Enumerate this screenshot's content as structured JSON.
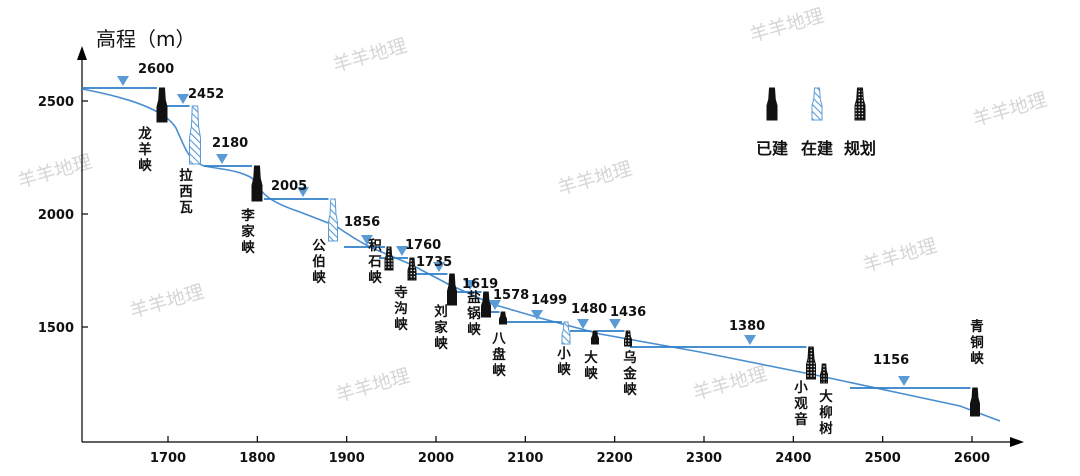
{
  "chart_data": {
    "type": "diagram",
    "y_axis_title": "高程（m）",
    "x_ticks": [
      1700,
      1800,
      1900,
      2000,
      2100,
      2200,
      2300,
      2400,
      2500,
      2600
    ],
    "y_ticks": [
      1500,
      2000,
      2500
    ],
    "legend": [
      {
        "key": "built",
        "label": "已建"
      },
      {
        "key": "building",
        "label": "在建"
      },
      {
        "key": "planned",
        "label": "规划"
      }
    ],
    "watermark": "羊羊地理",
    "stations": [
      {
        "name": "龙羊峡",
        "elevation": "2600",
        "status": "built"
      },
      {
        "name": "拉西瓦",
        "elevation": "2452",
        "status": "building"
      },
      {
        "name": "李家峡",
        "elevation": "2180",
        "status": "built"
      },
      {
        "name": "公伯峡",
        "elevation": "2005",
        "status": "building"
      },
      {
        "name": "积石峡",
        "elevation": "1856",
        "status": "planned"
      },
      {
        "name": "寺沟峡",
        "elevation": "1760",
        "status": "planned"
      },
      {
        "name": "刘家峡",
        "elevation": "1735",
        "status": "built"
      },
      {
        "name": "盐锅峡",
        "elevation": "1619",
        "status": "built"
      },
      {
        "name": "八盘峡",
        "elevation": "1578",
        "status": "built"
      },
      {
        "name": "小峡",
        "elevation": "1499",
        "status": "building"
      },
      {
        "name": "大峡",
        "elevation": "1480",
        "status": "built"
      },
      {
        "name": "乌金峡",
        "elevation": "1436",
        "status": "planned"
      },
      {
        "name": "小观音",
        "elevation": "1380",
        "status": "planned"
      },
      {
        "name": "大柳树",
        "elevation": "",
        "status": "planned"
      },
      {
        "name": "青铜峡",
        "elevation": "1156",
        "status": "built"
      }
    ]
  }
}
